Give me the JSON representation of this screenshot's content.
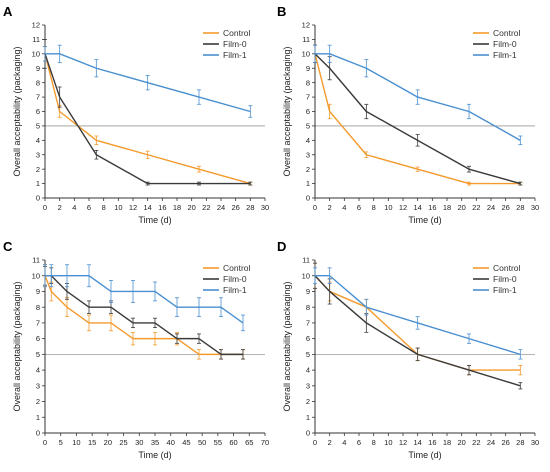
{
  "colors": {
    "Control": "#F39A2D",
    "Film-0": "#3A3A3A",
    "Film-1": "#4A8FD0",
    "threshold": "#9A9A9A",
    "axis": "#333333"
  },
  "chart_data": [
    {
      "type": "line",
      "panel": "A",
      "xlabel": "Time (d)",
      "ylabel": "Overall acceptability (packaging)",
      "xlim": [
        0,
        30
      ],
      "ylim": [
        0,
        12
      ],
      "xticks": [
        0,
        2,
        4,
        6,
        8,
        10,
        12,
        14,
        16,
        18,
        20,
        22,
        24,
        26,
        28,
        30
      ],
      "yticks": [
        0,
        1,
        2,
        3,
        4,
        5,
        6,
        7,
        8,
        9,
        10,
        11,
        12
      ],
      "threshold": 5,
      "legend": "top-right",
      "series": [
        {
          "name": "Control",
          "x": [
            0,
            2,
            7,
            14,
            21,
            28
          ],
          "y": [
            10,
            6,
            4,
            3,
            2,
            1
          ],
          "err": [
            0.5,
            0.4,
            0.3,
            0.25,
            0.2,
            0.1
          ]
        },
        {
          "name": "Film-0",
          "x": [
            0,
            2,
            7,
            14,
            21,
            28
          ],
          "y": [
            10,
            7,
            3,
            1,
            1,
            1
          ],
          "err": [
            1.0,
            0.7,
            0.3,
            0.1,
            0.1,
            0.1
          ]
        },
        {
          "name": "Film-1",
          "x": [
            0,
            2,
            7,
            14,
            21,
            28
          ],
          "y": [
            10,
            10,
            9,
            8,
            7,
            6
          ],
          "err": [
            0.5,
            0.6,
            0.6,
            0.5,
            0.5,
            0.4
          ]
        }
      ]
    },
    {
      "type": "line",
      "panel": "B",
      "xlabel": "Time (d)",
      "ylabel": "Overall acceptability (packaging)",
      "xlim": [
        0,
        30
      ],
      "ylim": [
        0,
        12
      ],
      "xticks": [
        0,
        2,
        4,
        6,
        8,
        10,
        12,
        14,
        16,
        18,
        20,
        22,
        24,
        26,
        28,
        30
      ],
      "yticks": [
        0,
        1,
        2,
        3,
        4,
        5,
        6,
        7,
        8,
        9,
        10,
        11,
        12
      ],
      "threshold": 5,
      "legend": "top-right",
      "series": [
        {
          "name": "Control",
          "x": [
            0,
            2,
            7,
            14,
            21,
            28
          ],
          "y": [
            10,
            6,
            3,
            2,
            1,
            1
          ],
          "err": [
            0.6,
            0.5,
            0.2,
            0.15,
            0.1,
            0.1
          ]
        },
        {
          "name": "Film-0",
          "x": [
            0,
            2,
            7,
            14,
            21,
            28
          ],
          "y": [
            10,
            9,
            6,
            4,
            2,
            1
          ],
          "err": [
            0.6,
            0.8,
            0.5,
            0.4,
            0.2,
            0.1
          ]
        },
        {
          "name": "Film-1",
          "x": [
            0,
            2,
            7,
            14,
            21,
            28
          ],
          "y": [
            10,
            10,
            9,
            7,
            6,
            4
          ],
          "err": [
            0.6,
            0.6,
            0.6,
            0.5,
            0.5,
            0.3
          ]
        }
      ]
    },
    {
      "type": "line",
      "panel": "C",
      "xlabel": "Time (d)",
      "ylabel": "Overall acceptability (packaging)",
      "xlim": [
        0,
        70
      ],
      "ylim": [
        0,
        11
      ],
      "xticks": [
        0,
        5,
        10,
        15,
        20,
        25,
        30,
        35,
        40,
        45,
        50,
        55,
        60,
        65,
        70
      ],
      "yticks": [
        0,
        1,
        2,
        3,
        4,
        5,
        6,
        7,
        8,
        9,
        10,
        11
      ],
      "threshold": 5,
      "legend": "top-right",
      "series": [
        {
          "name": "Control",
          "x": [
            0,
            2,
            7,
            14,
            21,
            28,
            35,
            42,
            49,
            56,
            63
          ],
          "y": [
            10,
            9,
            8,
            7,
            7,
            6,
            6,
            6,
            5,
            5,
            5
          ],
          "err": [
            0.7,
            0.6,
            0.6,
            0.5,
            0.5,
            0.4,
            0.4,
            0.4,
            0.3,
            0.3,
            0.3
          ]
        },
        {
          "name": "Film-0",
          "x": [
            0,
            2,
            7,
            14,
            21,
            28,
            35,
            42,
            49,
            56,
            63
          ],
          "y": [
            10,
            10,
            9,
            8,
            8,
            7,
            7,
            6,
            6,
            5,
            5
          ],
          "err": [
            0.6,
            0.5,
            0.5,
            0.4,
            0.4,
            0.3,
            0.3,
            0.3,
            0.3,
            0.3,
            0.3
          ]
        },
        {
          "name": "Film-1",
          "x": [
            0,
            2,
            7,
            14,
            21,
            28,
            35,
            42,
            49,
            56,
            63
          ],
          "y": [
            10,
            10,
            10,
            10,
            9,
            9,
            9,
            8,
            8,
            8,
            7
          ],
          "err": [
            0.7,
            0.7,
            0.7,
            0.7,
            0.7,
            0.7,
            0.6,
            0.6,
            0.6,
            0.6,
            0.5
          ]
        }
      ]
    },
    {
      "type": "line",
      "panel": "D",
      "xlabel": "Time (d)",
      "ylabel": "Overall acceptability (packaging)",
      "xlim": [
        0,
        30
      ],
      "ylim": [
        0,
        11
      ],
      "xticks": [
        0,
        2,
        4,
        6,
        8,
        10,
        12,
        14,
        16,
        18,
        20,
        22,
        24,
        26,
        28,
        30
      ],
      "yticks": [
        0,
        1,
        2,
        3,
        4,
        5,
        6,
        7,
        8,
        9,
        10,
        11
      ],
      "threshold": 5,
      "legend": "top-right",
      "series": [
        {
          "name": "Control",
          "x": [
            0,
            2,
            7,
            14,
            21,
            28
          ],
          "y": [
            10,
            9,
            8,
            5,
            4,
            4
          ],
          "err": [
            0.8,
            0.6,
            0.5,
            0.4,
            0.3,
            0.3
          ]
        },
        {
          "name": "Film-0",
          "x": [
            0,
            2,
            7,
            14,
            21,
            28
          ],
          "y": [
            10,
            9,
            7,
            5,
            4,
            3
          ],
          "err": [
            0.8,
            0.8,
            0.6,
            0.4,
            0.3,
            0.2
          ]
        },
        {
          "name": "Film-1",
          "x": [
            0,
            2,
            7,
            14,
            21,
            28
          ],
          "y": [
            10,
            10,
            8,
            7,
            6,
            5
          ],
          "err": [
            0.5,
            0.5,
            0.5,
            0.4,
            0.3,
            0.3
          ]
        }
      ]
    }
  ]
}
